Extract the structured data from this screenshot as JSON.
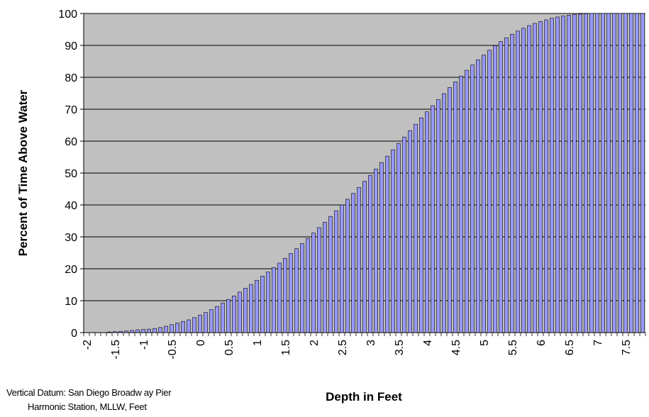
{
  "chart_data": {
    "type": "bar",
    "ylabel": "Percent of Time Above Water",
    "xlabel": "Depth in Feet",
    "ylim": [
      0,
      100
    ],
    "yticks": [
      0,
      10,
      20,
      30,
      40,
      50,
      60,
      70,
      80,
      90,
      100
    ],
    "xticks": [
      "-2",
      "-1.5",
      "-1",
      "-0.5",
      "0",
      "0.5",
      "1",
      "1.5",
      "2",
      "2.5",
      "3",
      "3.5",
      "4",
      "4.5",
      "5",
      "5.5",
      "6",
      "6.5",
      "7",
      "7.5"
    ],
    "x_start": -2.0,
    "x_step": 0.1,
    "grid": "horizontal",
    "plot_background": "#c0c0c0",
    "bar_color": "#9999ff",
    "values": [
      0,
      0,
      0,
      0,
      0.2,
      0.3,
      0.4,
      0.5,
      0.7,
      0.9,
      1.0,
      1.1,
      1.3,
      1.6,
      2.0,
      2.5,
      3.0,
      3.5,
      4.0,
      4.7,
      5.5,
      6.3,
      7.2,
      8.2,
      9.3,
      10.4,
      11.5,
      12.7,
      13.9,
      15.1,
      16.4,
      17.7,
      19.0,
      20.4,
      21.8,
      23.3,
      24.8,
      26.3,
      27.9,
      29.5,
      31.2,
      32.9,
      34.6,
      36.4,
      38.2,
      40.0,
      41.8,
      43.6,
      45.5,
      47.4,
      49.3,
      51.3,
      53.3,
      55.3,
      57.3,
      59.3,
      61.3,
      63.3,
      65.3,
      67.3,
      69.2,
      71.1,
      73.0,
      74.9,
      76.8,
      78.6,
      80.4,
      82.2,
      83.9,
      85.5,
      87.0,
      88.5,
      89.9,
      91.2,
      92.4,
      93.5,
      94.5,
      95.4,
      96.2,
      96.9,
      97.5,
      98.0,
      98.5,
      98.9,
      99.2,
      99.5,
      99.7,
      99.8,
      99.9,
      100,
      100,
      100,
      100,
      100,
      100,
      100,
      100,
      100,
      100
    ]
  },
  "footnote": {
    "line1": "Vertical Datum: San Diego Broadw ay Pier",
    "line2": "Harmonic Station, MLLW, Feet"
  }
}
